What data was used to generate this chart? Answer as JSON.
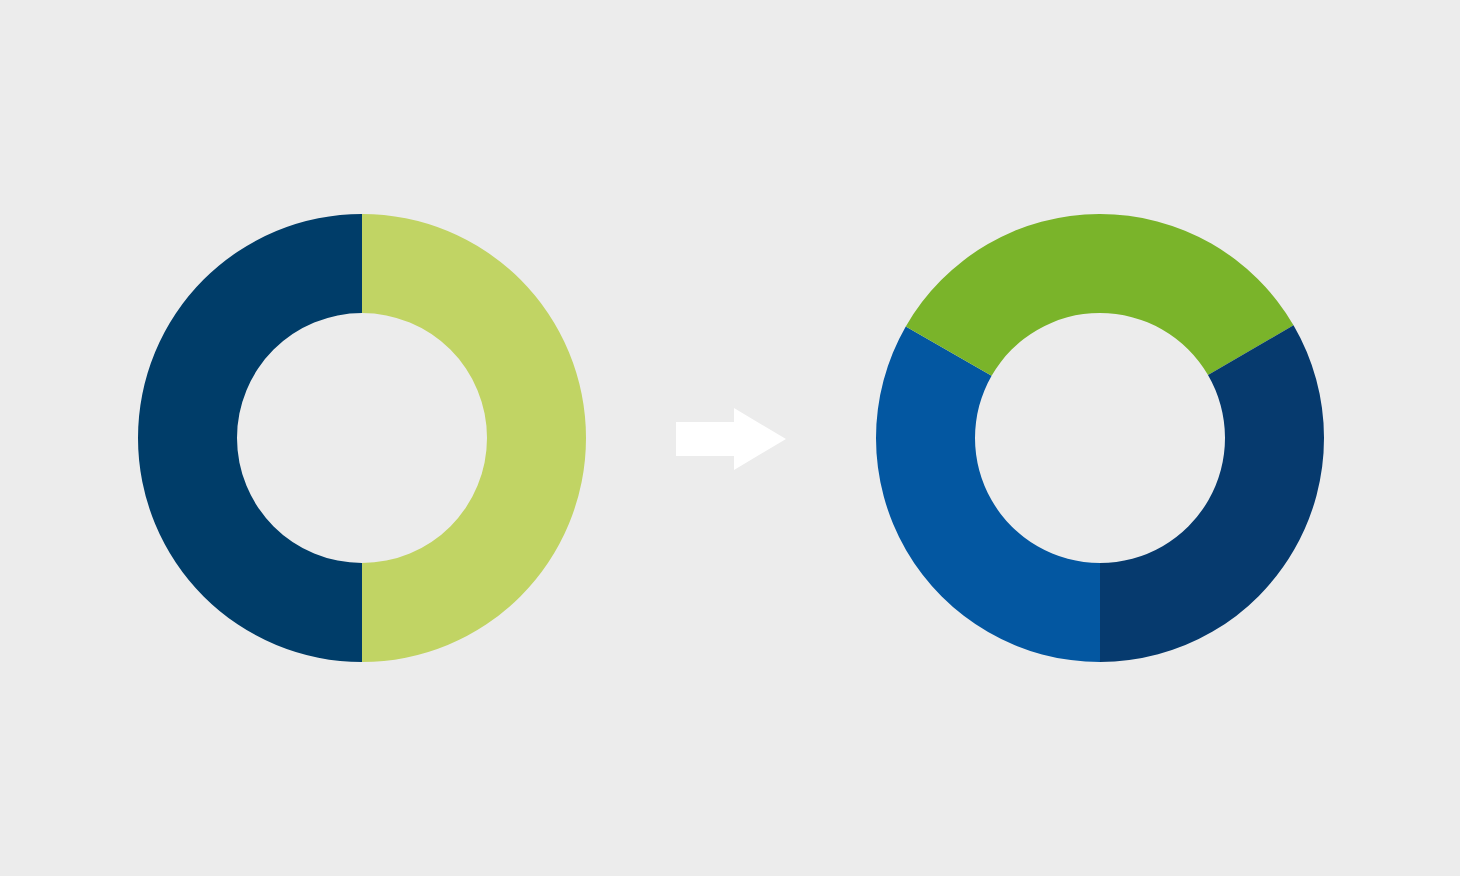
{
  "chart_data": [
    {
      "type": "donut",
      "categories": [
        null,
        null
      ],
      "values": [
        50,
        50
      ],
      "colors": [
        "#003d69",
        "#c1d464"
      ]
    },
    {
      "type": "donut",
      "categories": [
        null,
        null,
        null
      ],
      "values": [
        33.3,
        33.3,
        33.4
      ],
      "colors": [
        "#0357a1",
        "#7ab42a",
        "#063a6e"
      ]
    }
  ]
}
